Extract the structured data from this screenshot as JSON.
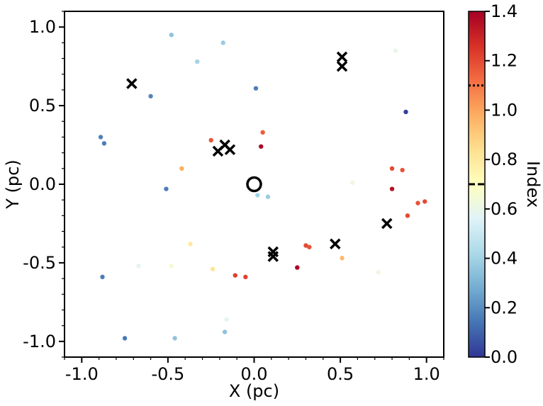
{
  "chart_data": {
    "type": "scatter",
    "xlabel": "X (pc)",
    "ylabel": "Y (pc)",
    "xlim": [
      -1.1,
      1.1
    ],
    "ylim": [
      -1.1,
      1.1
    ],
    "xticks": [
      -1.0,
      -0.5,
      0.0,
      0.5,
      1.0
    ],
    "xtick_labels": [
      "-1.0",
      "-0.5",
      "0.0",
      "0.5",
      "1.0"
    ],
    "yticks": [
      -1.0,
      -0.5,
      0.0,
      0.5,
      1.0
    ],
    "ytick_labels": [
      "-1.0",
      "-0.5",
      "0.0",
      "0.5",
      "1.0"
    ],
    "grid": false,
    "colorbar": {
      "label": "Index",
      "range": [
        0.0,
        1.4
      ],
      "ticks": [
        0.0,
        0.2,
        0.4,
        0.6,
        0.8,
        1.0,
        1.2,
        1.4
      ],
      "tick_labels": [
        "0.0",
        "0.2",
        "0.4",
        "0.6",
        "0.8",
        "1.0",
        "1.2",
        "1.4"
      ],
      "colormap": "RdYlBu_r",
      "stops": [
        "#313695",
        "#4575b4",
        "#74add1",
        "#abd9e9",
        "#e0f3f8",
        "#ffffbf",
        "#fee090",
        "#fdae61",
        "#f46d43",
        "#d73027",
        "#a50026"
      ],
      "dotted_line_value": 1.1,
      "dashed_line_value": 0.7
    },
    "points": [
      {
        "x": -0.48,
        "y": 0.95,
        "index": 0.35
      },
      {
        "x": -0.18,
        "y": 0.9,
        "index": 0.38
      },
      {
        "x": -0.33,
        "y": 0.78,
        "index": 0.4
      },
      {
        "x": -0.6,
        "y": 0.56,
        "index": 0.18
      },
      {
        "x": 0.01,
        "y": 0.61,
        "index": 0.16
      },
      {
        "x": 0.82,
        "y": 0.85,
        "index": 0.6
      },
      {
        "x": 0.88,
        "y": 0.46,
        "index": 0.02
      },
      {
        "x": -0.89,
        "y": 0.3,
        "index": 0.17
      },
      {
        "x": -0.87,
        "y": 0.26,
        "index": 0.16
      },
      {
        "x": -0.25,
        "y": 0.28,
        "index": 1.18
      },
      {
        "x": 0.05,
        "y": 0.33,
        "index": 1.16
      },
      {
        "x": 0.04,
        "y": 0.24,
        "index": 1.38
      },
      {
        "x": -0.42,
        "y": 0.1,
        "index": 0.98
      },
      {
        "x": -0.51,
        "y": -0.03,
        "index": 0.16
      },
      {
        "x": 0.57,
        "y": 0.01,
        "index": 0.62
      },
      {
        "x": 0.8,
        "y": 0.1,
        "index": 1.2
      },
      {
        "x": 0.86,
        "y": 0.09,
        "index": 1.18
      },
      {
        "x": 0.8,
        "y": -0.03,
        "index": 1.35
      },
      {
        "x": 0.02,
        "y": -0.07,
        "index": 0.4
      },
      {
        "x": 0.08,
        "y": -0.08,
        "index": 0.38
      },
      {
        "x": 0.95,
        "y": -0.12,
        "index": 1.18
      },
      {
        "x": 0.99,
        "y": -0.11,
        "index": 1.2
      },
      {
        "x": 0.89,
        "y": -0.2,
        "index": 1.2
      },
      {
        "x": -0.37,
        "y": -0.38,
        "index": 0.8
      },
      {
        "x": 0.3,
        "y": -0.39,
        "index": 1.2
      },
      {
        "x": 0.32,
        "y": -0.4,
        "index": 1.18
      },
      {
        "x": 0.51,
        "y": -0.47,
        "index": 0.95
      },
      {
        "x": -0.67,
        "y": -0.52,
        "index": 0.58
      },
      {
        "x": -0.48,
        "y": -0.52,
        "index": 0.65
      },
      {
        "x": -0.24,
        "y": -0.54,
        "index": 0.82
      },
      {
        "x": 0.25,
        "y": -0.53,
        "index": 1.38
      },
      {
        "x": 0.72,
        "y": -0.56,
        "index": 0.62
      },
      {
        "x": -0.11,
        "y": -0.58,
        "index": 1.22
      },
      {
        "x": -0.05,
        "y": -0.59,
        "index": 1.22
      },
      {
        "x": -0.88,
        "y": -0.59,
        "index": 0.16
      },
      {
        "x": -0.16,
        "y": -0.86,
        "index": 0.58
      },
      {
        "x": -0.17,
        "y": -0.94,
        "index": 0.35
      },
      {
        "x": -0.75,
        "y": -0.98,
        "index": 0.15
      },
      {
        "x": -0.46,
        "y": -0.98,
        "index": 0.35
      }
    ],
    "x_markers": [
      {
        "x": -0.71,
        "y": 0.64
      },
      {
        "x": 0.51,
        "y": 0.81
      },
      {
        "x": 0.51,
        "y": 0.75
      },
      {
        "x": -0.21,
        "y": 0.21
      },
      {
        "x": -0.17,
        "y": 0.25
      },
      {
        "x": -0.14,
        "y": 0.22
      },
      {
        "x": 0.77,
        "y": -0.25
      },
      {
        "x": 0.47,
        "y": -0.38
      },
      {
        "x": 0.11,
        "y": -0.43
      },
      {
        "x": 0.11,
        "y": -0.46
      }
    ],
    "center_marker": {
      "x": 0.0,
      "y": 0.0
    }
  }
}
